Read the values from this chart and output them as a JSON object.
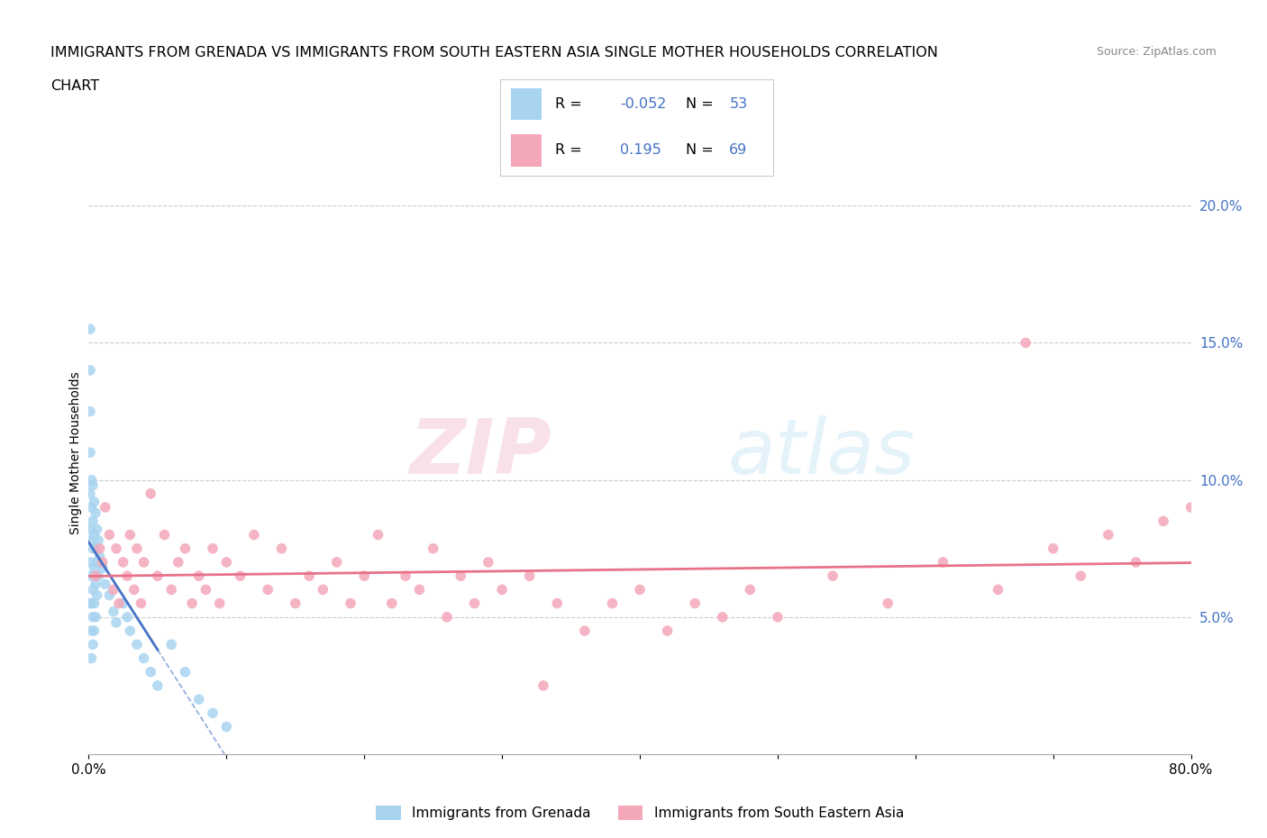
{
  "title_line1": "IMMIGRANTS FROM GRENADA VS IMMIGRANTS FROM SOUTH EASTERN ASIA SINGLE MOTHER HOUSEHOLDS CORRELATION",
  "title_line2": "CHART",
  "source": "Source: ZipAtlas.com",
  "ylabel": "Single Mother Households",
  "xlim": [
    0.0,
    0.8
  ],
  "ylim": [
    0.0,
    0.22
  ],
  "ytick_vals": [
    0.05,
    0.1,
    0.15,
    0.2
  ],
  "ytick_labels": [
    "5.0%",
    "10.0%",
    "15.0%",
    "20.0%"
  ],
  "watermark_zip": "ZIP",
  "watermark_atlas": "atlas",
  "legend_R1": "-0.052",
  "legend_N1": "53",
  "legend_R2": "0.195",
  "legend_N2": "69",
  "color_blue": "#a8d4f0",
  "color_blue_line": "#4472c4",
  "color_pink": "#f4a7b9",
  "color_pink_line": "#e8728a",
  "label1": "Immigrants from Grenada",
  "label2": "Immigrants from South Eastern Asia",
  "grenada_x": [
    0.001,
    0.001,
    0.001,
    0.001,
    0.001,
    0.001,
    0.001,
    0.001,
    0.002,
    0.002,
    0.002,
    0.002,
    0.002,
    0.002,
    0.002,
    0.003,
    0.003,
    0.003,
    0.003,
    0.003,
    0.003,
    0.004,
    0.004,
    0.004,
    0.004,
    0.004,
    0.005,
    0.005,
    0.005,
    0.005,
    0.006,
    0.006,
    0.006,
    0.007,
    0.007,
    0.008,
    0.01,
    0.012,
    0.015,
    0.018,
    0.02,
    0.025,
    0.028,
    0.03,
    0.035,
    0.04,
    0.045,
    0.05,
    0.06,
    0.07,
    0.08,
    0.09,
    0.1
  ],
  "grenada_y": [
    0.155,
    0.14,
    0.125,
    0.11,
    0.095,
    0.082,
    0.07,
    0.055,
    0.1,
    0.09,
    0.078,
    0.065,
    0.055,
    0.045,
    0.035,
    0.098,
    0.085,
    0.075,
    0.06,
    0.05,
    0.04,
    0.092,
    0.08,
    0.068,
    0.055,
    0.045,
    0.088,
    0.075,
    0.062,
    0.05,
    0.082,
    0.07,
    0.058,
    0.078,
    0.065,
    0.072,
    0.068,
    0.062,
    0.058,
    0.052,
    0.048,
    0.055,
    0.05,
    0.045,
    0.04,
    0.035,
    0.03,
    0.025,
    0.04,
    0.03,
    0.02,
    0.015,
    0.01
  ],
  "sea_x": [
    0.005,
    0.008,
    0.01,
    0.012,
    0.015,
    0.018,
    0.02,
    0.022,
    0.025,
    0.028,
    0.03,
    0.033,
    0.035,
    0.038,
    0.04,
    0.045,
    0.05,
    0.055,
    0.06,
    0.065,
    0.07,
    0.075,
    0.08,
    0.085,
    0.09,
    0.095,
    0.1,
    0.11,
    0.12,
    0.13,
    0.14,
    0.15,
    0.16,
    0.17,
    0.18,
    0.19,
    0.2,
    0.21,
    0.22,
    0.23,
    0.24,
    0.25,
    0.26,
    0.27,
    0.28,
    0.29,
    0.3,
    0.32,
    0.34,
    0.36,
    0.38,
    0.4,
    0.42,
    0.44,
    0.46,
    0.48,
    0.5,
    0.54,
    0.58,
    0.62,
    0.66,
    0.7,
    0.72,
    0.74,
    0.76,
    0.78,
    0.8,
    0.68,
    0.33
  ],
  "sea_y": [
    0.065,
    0.075,
    0.07,
    0.09,
    0.08,
    0.06,
    0.075,
    0.055,
    0.07,
    0.065,
    0.08,
    0.06,
    0.075,
    0.055,
    0.07,
    0.095,
    0.065,
    0.08,
    0.06,
    0.07,
    0.075,
    0.055,
    0.065,
    0.06,
    0.075,
    0.055,
    0.07,
    0.065,
    0.08,
    0.06,
    0.075,
    0.055,
    0.065,
    0.06,
    0.07,
    0.055,
    0.065,
    0.08,
    0.055,
    0.065,
    0.06,
    0.075,
    0.05,
    0.065,
    0.055,
    0.07,
    0.06,
    0.065,
    0.055,
    0.045,
    0.055,
    0.06,
    0.045,
    0.055,
    0.05,
    0.06,
    0.05,
    0.065,
    0.055,
    0.07,
    0.06,
    0.075,
    0.065,
    0.08,
    0.07,
    0.085,
    0.09,
    0.15,
    0.025
  ],
  "background_color": "#ffffff",
  "grid_color": "#cccccc"
}
